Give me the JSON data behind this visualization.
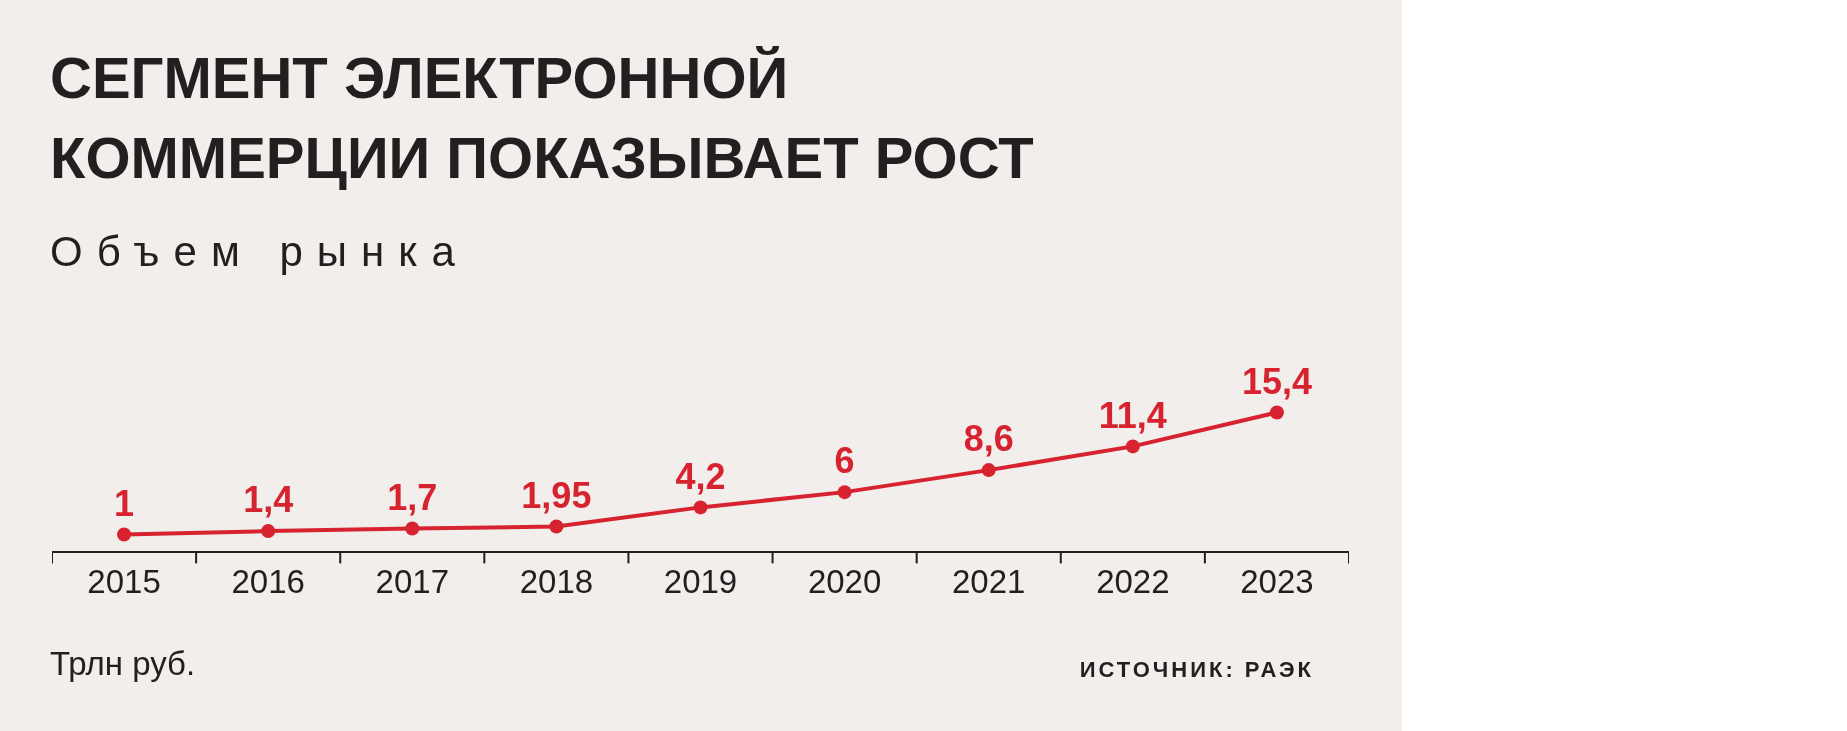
{
  "chart_data": {
    "type": "line",
    "title": "СЕГМЕНТ ЭЛЕКТРОННОЙ КОММЕРЦИИ ПОКАЗЫВАЕТ РОСТ",
    "subtitle": "Объем рынка",
    "categories": [
      "2015",
      "2016",
      "2017",
      "2018",
      "2019",
      "2020",
      "2021",
      "2022",
      "2023"
    ],
    "series": [
      {
        "color": "#d7232f",
        "values": [
          1,
          1.4,
          1.7,
          1.95,
          4.2,
          6,
          8.6,
          11.4,
          15.4
        ],
        "value_labels": [
          "1",
          "1,4",
          "1,7",
          "1,95",
          "4,2",
          "6",
          "8,6",
          "11,4",
          "15,4"
        ]
      }
    ],
    "tick_labels": "x",
    "marker": "circle",
    "line_style": "solid",
    "annotations": [
      "Трлн руб.",
      "ИСТОЧНИК: РАЭК"
    ]
  }
}
